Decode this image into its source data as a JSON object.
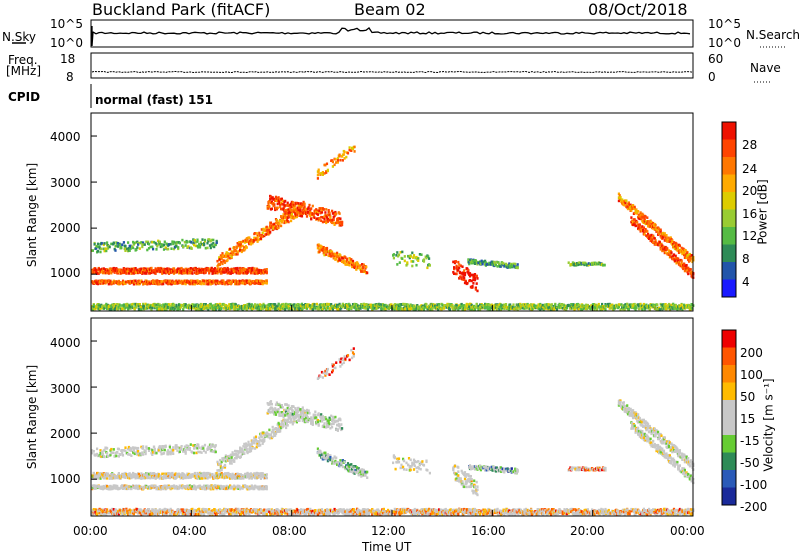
{
  "header": {
    "station": "Buckland Park (fitACF)",
    "beam": "Beam 02",
    "date": "08/Oct/2018"
  },
  "top_panels": {
    "nsky_label": "N.Sky",
    "nsky_ticks": [
      "10^5",
      "10^0"
    ],
    "nsearch_label": "N.Search",
    "nsearch_ticks": [
      "10^5",
      "10^0"
    ],
    "freq_label": "Freq.",
    "freq_unit": "[MHz]",
    "freq_ticks": [
      "18",
      "8"
    ],
    "nave_label": "Nave",
    "nave_ticks": [
      "60",
      "0"
    ],
    "cpid_label": "CPID",
    "cpid_value": "normal (fast) 151"
  },
  "chart_data": [
    {
      "type": "heatmap",
      "name": "power",
      "ylabel": "Slant Range [km]",
      "yticks": [
        "4000",
        "3000",
        "2000",
        "1000"
      ],
      "ylim": [
        200,
        4500
      ],
      "xlim_hours": [
        0,
        24
      ],
      "colorbar_label": "Power [dB]",
      "colorbar_ticks": [
        "28",
        "24",
        "20",
        "16",
        "12",
        "8",
        "4"
      ],
      "colorbar_colors": [
        "#1a1aff",
        "#2255aa",
        "#2e8b57",
        "#55bb44",
        "#99cc33",
        "#ddcc00",
        "#ffaa00",
        "#ff7700",
        "#ff4400",
        "#ee1100"
      ],
      "clim": [
        0,
        32
      ]
    },
    {
      "type": "heatmap",
      "name": "velocity",
      "ylabel": "Slant Range [km]",
      "yticks": [
        "4000",
        "3000",
        "2000",
        "1000"
      ],
      "ylim": [
        200,
        4500
      ],
      "xlim_hours": [
        0,
        24
      ],
      "colorbar_label": "Velocity [m s⁻¹]",
      "colorbar_ticks": [
        "200",
        "100",
        "50",
        "15",
        "-15",
        "-50",
        "-100",
        "-200"
      ],
      "colorbar_colors": [
        "#1a2a9a",
        "#2a5ab8",
        "#2e8b57",
        "#66cc33",
        "#c8c8c8",
        "#c8c8c8",
        "#ffbb00",
        "#ff8800",
        "#ff5500",
        "#ee0000"
      ],
      "clim": [
        -250,
        250
      ]
    }
  ],
  "xaxis": {
    "label": "Time UT",
    "ticks": [
      "00:00",
      "04:00",
      "08:00",
      "12:00",
      "16:00",
      "20:00",
      "00:00"
    ]
  }
}
